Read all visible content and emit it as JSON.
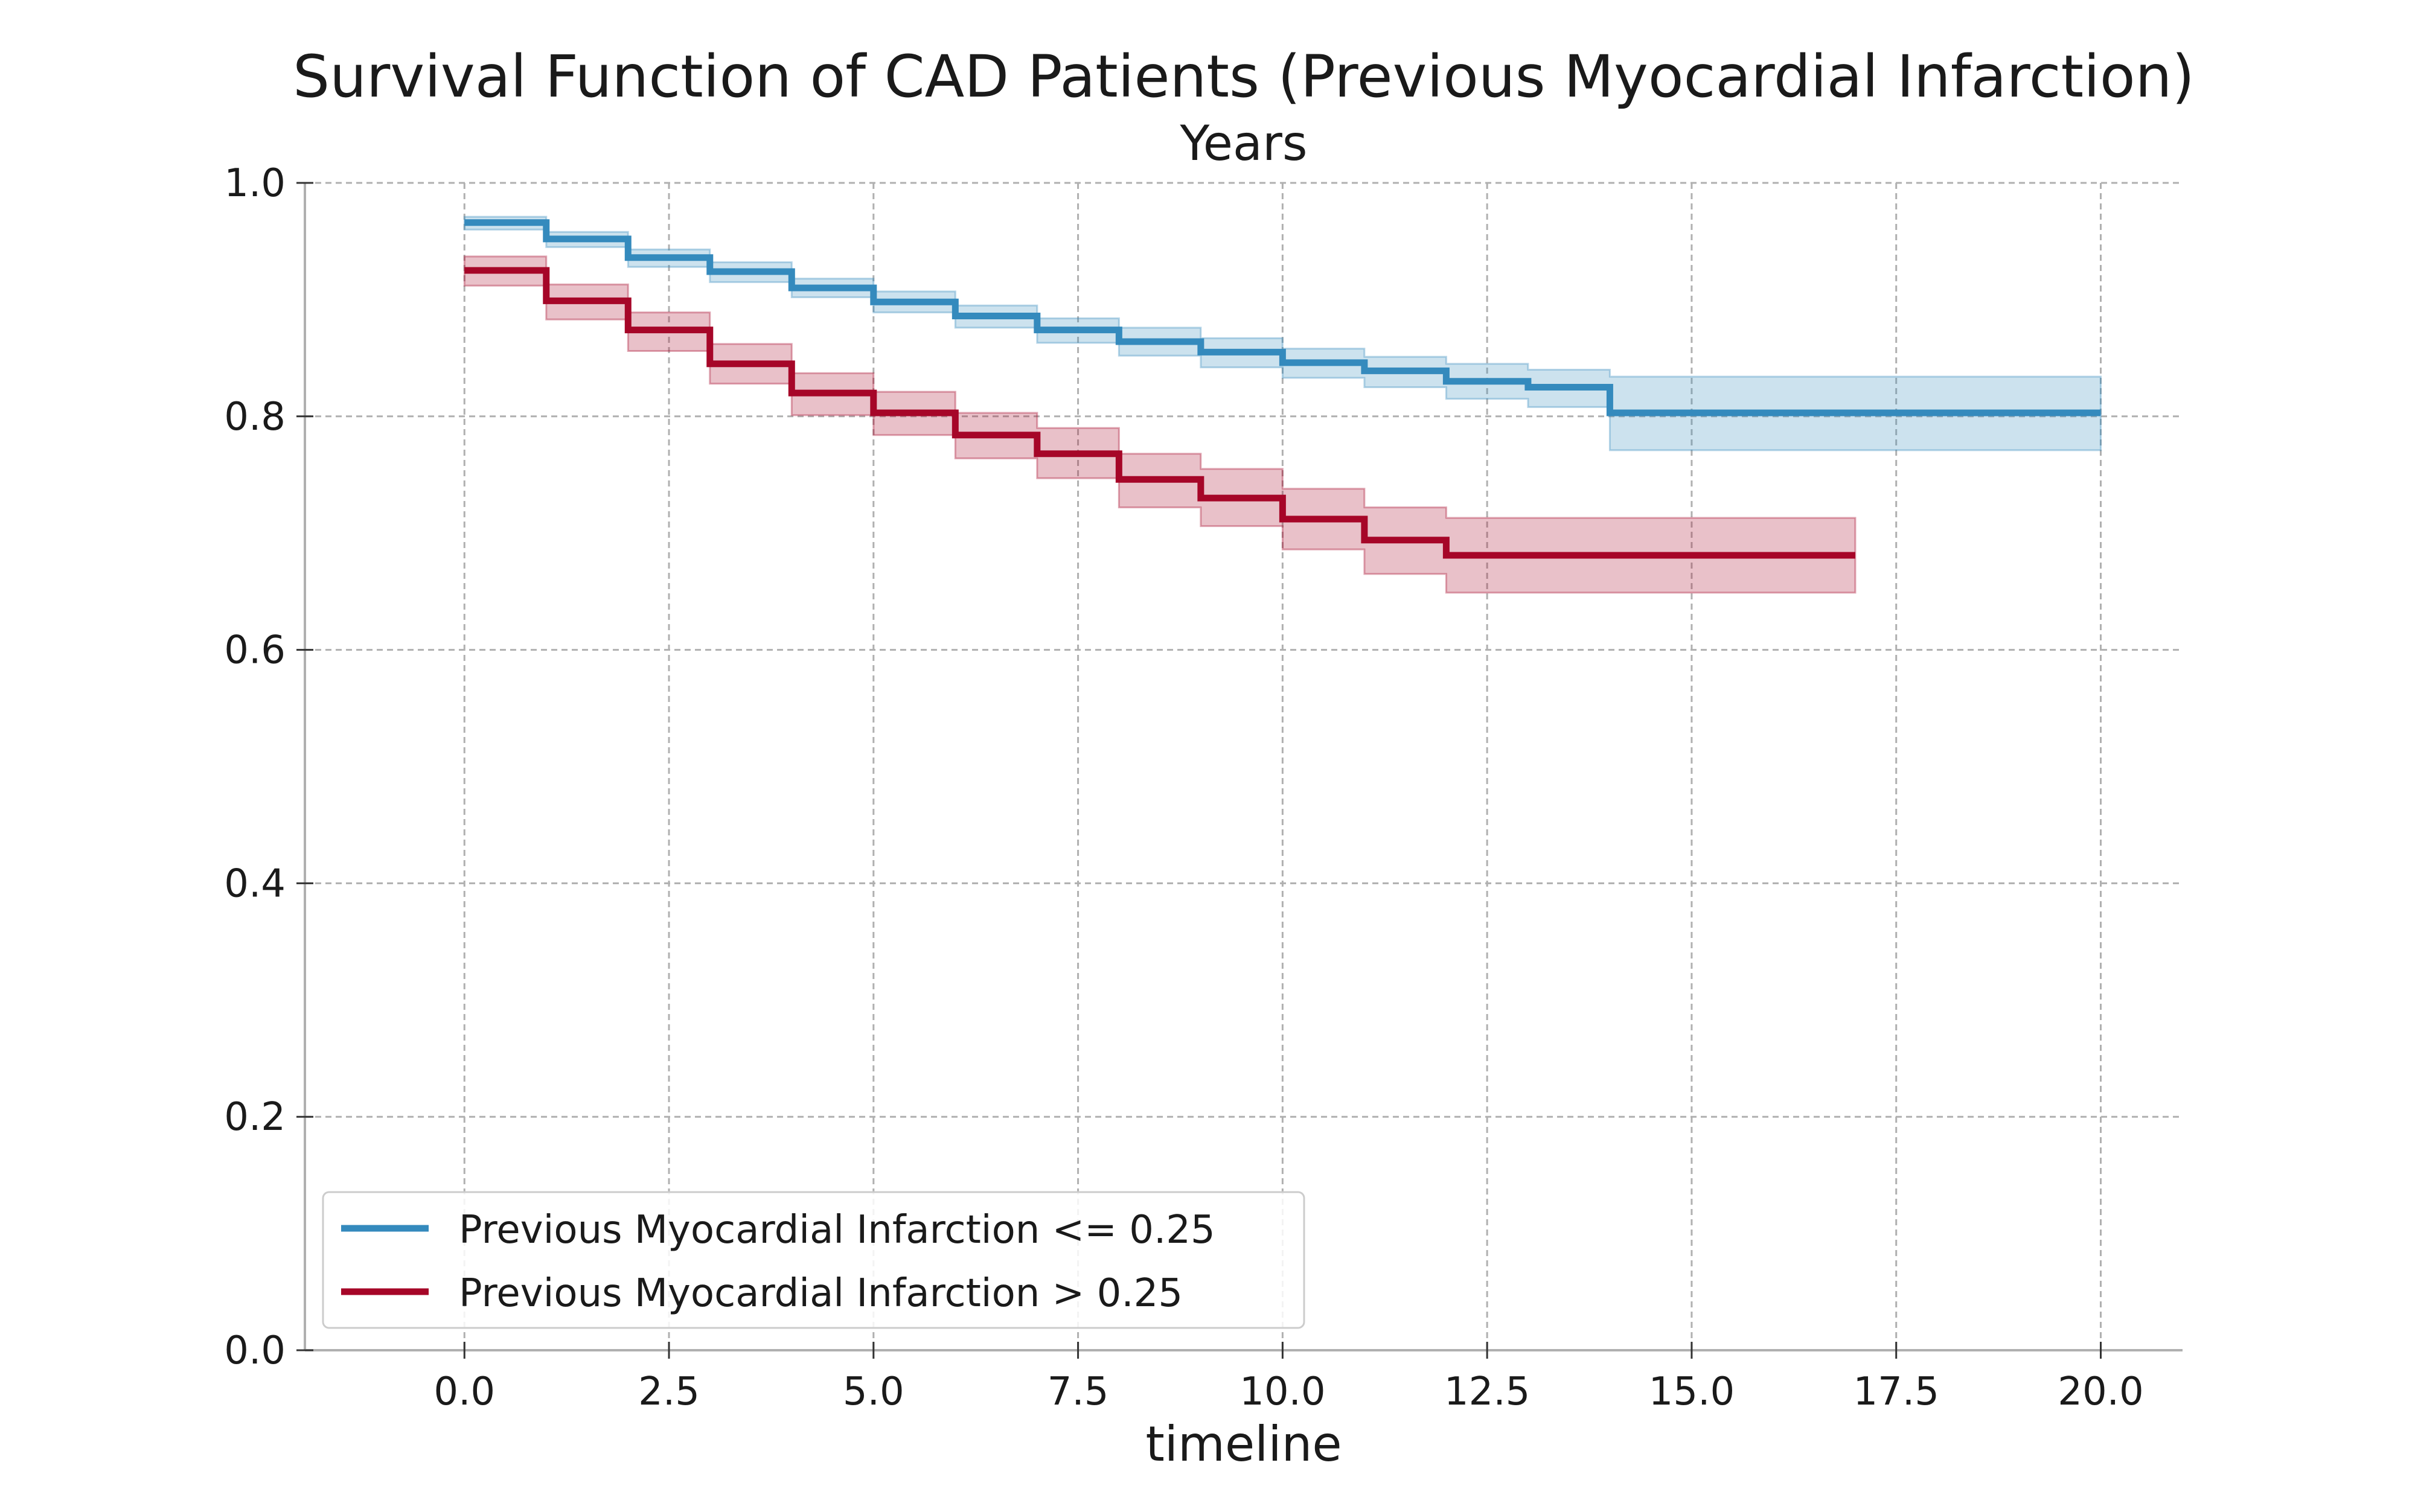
{
  "chart_data": {
    "type": "line",
    "title": "Survival Function of CAD Patients (Previous Myocardial Infarction)",
    "subtitle": "Years",
    "xlabel": "timeline",
    "ylabel": "",
    "xlim": [
      -1.95,
      21.0
    ],
    "ylim": [
      0.0,
      1.0
    ],
    "x_ticks": [
      0.0,
      2.5,
      5.0,
      7.5,
      10.0,
      12.5,
      15.0,
      17.5,
      20.0
    ],
    "x_tick_labels": [
      "0.0",
      "2.5",
      "5.0",
      "7.5",
      "10.0",
      "12.5",
      "15.0",
      "17.5",
      "20.0"
    ],
    "y_ticks": [
      0.0,
      0.2,
      0.4,
      0.6,
      0.8,
      1.0
    ],
    "y_tick_labels": [
      "0.0",
      "0.2",
      "0.4",
      "0.6",
      "0.8",
      "1.0"
    ],
    "grid": true,
    "legend_position": "lower-left",
    "series": [
      {
        "name": "Previous Myocardial Infarction <= 0.25",
        "color": "#348abd",
        "step": "post",
        "x": [
          0,
          1,
          2,
          3,
          4,
          5,
          6,
          7,
          8,
          9,
          10,
          11,
          12,
          13,
          14,
          20
        ],
        "y": [
          0.966,
          0.952,
          0.936,
          0.924,
          0.91,
          0.898,
          0.886,
          0.874,
          0.864,
          0.855,
          0.846,
          0.839,
          0.83,
          0.825,
          0.803,
          0.803
        ],
        "ci_lower": [
          0.96,
          0.945,
          0.928,
          0.915,
          0.902,
          0.889,
          0.876,
          0.863,
          0.852,
          0.842,
          0.833,
          0.825,
          0.815,
          0.808,
          0.771,
          0.771
        ],
        "ci_upper": [
          0.971,
          0.958,
          0.943,
          0.932,
          0.918,
          0.907,
          0.895,
          0.884,
          0.876,
          0.867,
          0.858,
          0.851,
          0.845,
          0.84,
          0.834,
          0.834
        ]
      },
      {
        "name": "Previous Myocardial Infarction > 0.25",
        "color": "#a60628",
        "step": "post",
        "x": [
          0,
          1,
          2,
          3,
          4,
          5,
          6,
          7,
          8,
          9,
          10,
          11,
          12,
          17
        ],
        "y": [
          0.925,
          0.899,
          0.874,
          0.845,
          0.82,
          0.803,
          0.784,
          0.768,
          0.746,
          0.73,
          0.712,
          0.694,
          0.681,
          0.681
        ],
        "ci_lower": [
          0.912,
          0.883,
          0.856,
          0.828,
          0.801,
          0.784,
          0.764,
          0.747,
          0.722,
          0.706,
          0.686,
          0.665,
          0.649,
          0.649
        ],
        "ci_upper": [
          0.937,
          0.913,
          0.889,
          0.862,
          0.837,
          0.821,
          0.803,
          0.79,
          0.768,
          0.755,
          0.738,
          0.722,
          0.713,
          0.713
        ]
      }
    ]
  }
}
